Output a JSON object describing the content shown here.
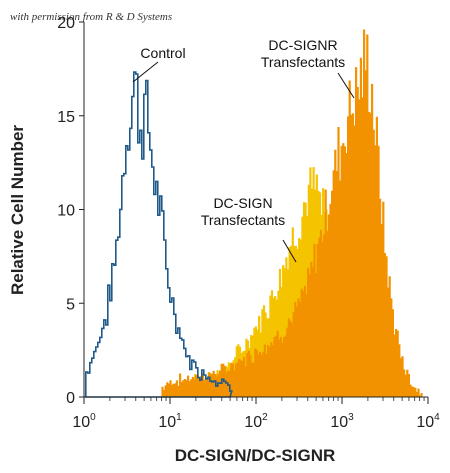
{
  "watermark": "with permission from R & D Systems",
  "chart_data": {
    "type": "histogram",
    "xlabel": "DC-SIGN/DC-SIGNR",
    "ylabel": "Relative Cell Number",
    "x_scale": "log",
    "xlim": [
      1,
      10000
    ],
    "ylim": [
      0,
      20
    ],
    "grid": false,
    "x_ticks": [
      {
        "value": 1,
        "base": "10",
        "exp": "0"
      },
      {
        "value": 10,
        "base": "10",
        "exp": "1"
      },
      {
        "value": 100,
        "base": "10",
        "exp": "2"
      },
      {
        "value": 1000,
        "base": "10",
        "exp": "3"
      },
      {
        "value": 10000,
        "base": "10",
        "exp": "4"
      }
    ],
    "y_ticks": [
      {
        "value": 0,
        "label": "0"
      },
      {
        "value": 5,
        "label": "5"
      },
      {
        "value": 10,
        "label": "10"
      },
      {
        "value": 15,
        "label": "15"
      },
      {
        "value": 20,
        "label": "20"
      }
    ],
    "series": [
      {
        "label_lines": [
          "Control"
        ],
        "style": "outline",
        "color": "#1f5a8a",
        "points": [
          [
            1.05,
            1.3
          ],
          [
            1.2,
            2.0
          ],
          [
            1.4,
            2.8
          ],
          [
            1.6,
            3.6
          ],
          [
            1.8,
            4.5
          ],
          [
            2.0,
            5.8
          ],
          [
            2.2,
            7.0
          ],
          [
            2.4,
            8.5
          ],
          [
            2.6,
            10.2
          ],
          [
            2.8,
            12.2
          ],
          [
            3.0,
            13.8
          ],
          [
            3.2,
            14.6
          ],
          [
            3.4,
            15.2
          ],
          [
            3.6,
            16.3
          ],
          [
            3.8,
            16.9
          ],
          [
            4.0,
            16.0
          ],
          [
            4.3,
            15.0
          ],
          [
            4.6,
            14.3
          ],
          [
            5.0,
            15.4
          ],
          [
            5.4,
            14.8
          ],
          [
            5.8,
            13.3
          ],
          [
            6.3,
            12.1
          ],
          [
            7.0,
            10.6
          ],
          [
            7.8,
            9.2
          ],
          [
            8.6,
            7.5
          ],
          [
            9.5,
            6.1
          ],
          [
            10.5,
            4.9
          ],
          [
            12,
            3.8
          ],
          [
            13.5,
            3.0
          ],
          [
            15,
            2.3
          ],
          [
            17,
            1.9
          ],
          [
            19,
            1.6
          ],
          [
            22,
            1.3
          ],
          [
            26,
            1.2
          ],
          [
            30,
            1.0
          ],
          [
            35,
            0.9
          ],
          [
            40,
            1.0
          ],
          [
            45,
            0.6
          ],
          [
            50,
            0.2
          ]
        ]
      },
      {
        "label_lines": [
          "DC-SIGN",
          "Transfectants"
        ],
        "style": "filled",
        "color": "#f5c400",
        "points": [
          [
            12,
            0.4
          ],
          [
            15,
            0.7
          ],
          [
            20,
            0.9
          ],
          [
            25,
            1.0
          ],
          [
            30,
            1.1
          ],
          [
            40,
            1.4
          ],
          [
            50,
            1.8
          ],
          [
            60,
            2.3
          ],
          [
            75,
            2.8
          ],
          [
            90,
            3.4
          ],
          [
            110,
            4.1
          ],
          [
            130,
            4.8
          ],
          [
            160,
            5.6
          ],
          [
            190,
            6.6
          ],
          [
            220,
            7.5
          ],
          [
            260,
            8.4
          ],
          [
            300,
            9.2
          ],
          [
            350,
            10.0
          ],
          [
            400,
            10.8
          ],
          [
            460,
            11.1
          ],
          [
            520,
            10.6
          ],
          [
            600,
            9.7
          ],
          [
            700,
            8.6
          ],
          [
            800,
            7.3
          ],
          [
            950,
            6.0
          ],
          [
            1100,
            4.8
          ],
          [
            1300,
            3.7
          ],
          [
            1600,
            2.8
          ],
          [
            2000,
            2.0
          ],
          [
            2600,
            1.4
          ],
          [
            3300,
            1.0
          ],
          [
            4200,
            0.7
          ],
          [
            5500,
            0.4
          ],
          [
            7000,
            0.2
          ]
        ]
      },
      {
        "label_lines": [
          "DC-SIGNR",
          "Transfectants"
        ],
        "style": "filled",
        "color": "#f39200",
        "points": [
          [
            8,
            0.5
          ],
          [
            10,
            0.8
          ],
          [
            13,
            0.9
          ],
          [
            17,
            1.0
          ],
          [
            22,
            1.1
          ],
          [
            30,
            1.2
          ],
          [
            40,
            1.4
          ],
          [
            55,
            1.7
          ],
          [
            70,
            2.0
          ],
          [
            90,
            2.3
          ],
          [
            120,
            2.7
          ],
          [
            160,
            3.1
          ],
          [
            200,
            3.5
          ],
          [
            250,
            4.1
          ],
          [
            300,
            4.7
          ],
          [
            360,
            5.5
          ],
          [
            430,
            6.6
          ],
          [
            500,
            7.8
          ],
          [
            580,
            9.0
          ],
          [
            660,
            10.2
          ],
          [
            750,
            11.4
          ],
          [
            850,
            12.6
          ],
          [
            950,
            13.4
          ],
          [
            1050,
            14.2
          ],
          [
            1150,
            15.1
          ],
          [
            1300,
            15.8
          ],
          [
            1450,
            16.3
          ],
          [
            1600,
            16.9
          ],
          [
            1750,
            17.4
          ],
          [
            1900,
            18.0
          ],
          [
            2050,
            17.1
          ],
          [
            2250,
            15.6
          ],
          [
            2500,
            13.2
          ],
          [
            2800,
            10.4
          ],
          [
            3100,
            8.0
          ],
          [
            3500,
            5.8
          ],
          [
            4000,
            3.9
          ],
          [
            4600,
            2.5
          ],
          [
            5300,
            1.5
          ],
          [
            6200,
            0.8
          ],
          [
            7200,
            0.4
          ],
          [
            8500,
            0.2
          ]
        ]
      }
    ]
  }
}
